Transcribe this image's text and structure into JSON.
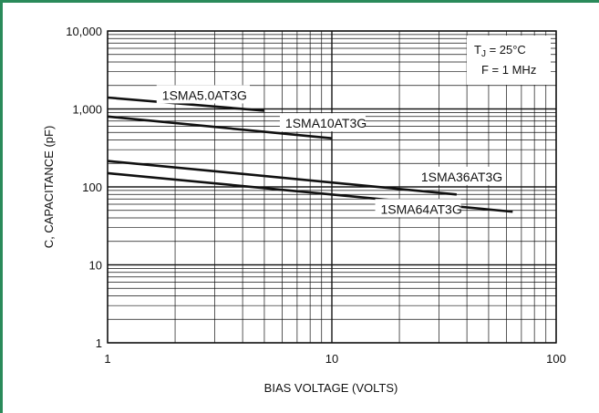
{
  "chart_data": {
    "type": "line",
    "x_scale": "log",
    "y_scale": "log",
    "xlabel": "BIAS VOLTAGE (VOLTS)",
    "ylabel": "C, CAPACITANCE (pF)",
    "xlim": [
      1,
      100
    ],
    "ylim": [
      1,
      10000
    ],
    "x_tick_labels": [
      "1",
      "10",
      "100"
    ],
    "y_tick_labels": [
      "1",
      "10",
      "100",
      "1,000",
      "10,000"
    ],
    "grid": true,
    "annotation": {
      "tj_prefix": "T",
      "tj_sub": "J",
      "tj_rest": " = 25°C",
      "freq": "F = 1 MHz"
    },
    "series": [
      {
        "name": "1SMA5.0AT3G",
        "x": [
          1,
          5
        ],
        "y": [
          1400,
          950
        ]
      },
      {
        "name": "1SMA10AT3G",
        "x": [
          1,
          10
        ],
        "y": [
          800,
          420
        ]
      },
      {
        "name": "1SMA36AT3G",
        "x": [
          1,
          36
        ],
        "y": [
          215,
          80
        ]
      },
      {
        "name": "1SMA64AT3G",
        "x": [
          1,
          64
        ],
        "y": [
          150,
          48
        ]
      }
    ]
  },
  "colors": {
    "frame": "#2a8a5a",
    "ink": "#111111"
  }
}
